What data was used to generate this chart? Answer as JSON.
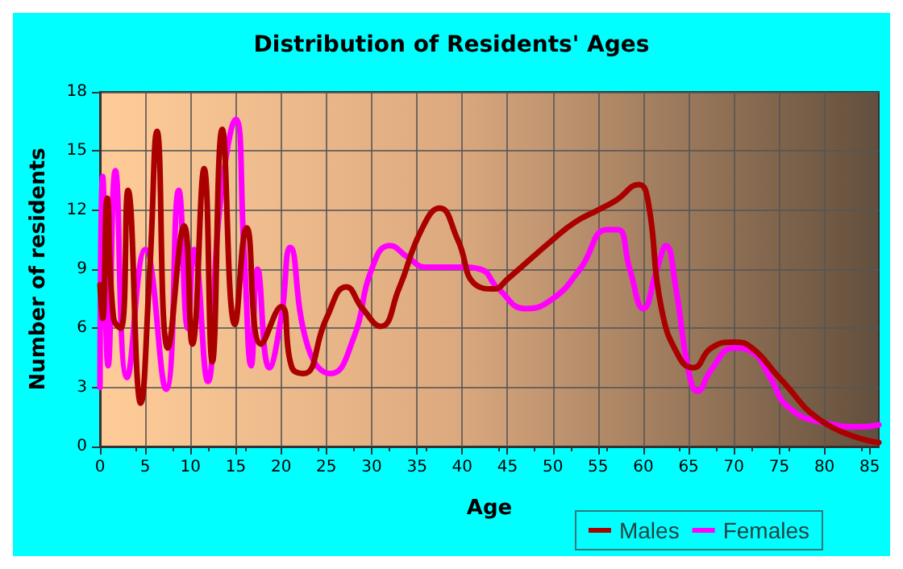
{
  "chart_data": {
    "type": "line",
    "title": "Distribution of Residents' Ages",
    "xlabel": "Age",
    "ylabel": "Number of residents",
    "xlim": [
      0,
      86
    ],
    "xticks": [
      0,
      5,
      10,
      15,
      20,
      25,
      30,
      35,
      40,
      45,
      50,
      55,
      60,
      65,
      70,
      75,
      80,
      85
    ],
    "ylim": [
      0,
      18
    ],
    "yticks": [
      0,
      3,
      6,
      9,
      12,
      15,
      18
    ],
    "grid": true,
    "legend": "bottom right",
    "marker": "none",
    "line_style": "solid",
    "series": [
      {
        "name": "Males",
        "color": "#aa0000",
        "x": [
          0,
          0.3,
          0.8,
          1.5,
          2.3,
          3.1,
          4.5,
          5.5,
          6.3,
          7.5,
          9.3,
          10.2,
          11.5,
          12.4,
          13.5,
          14.9,
          16.2,
          17.8,
          20,
          21.2,
          22.5,
          25,
          27.2,
          29,
          31,
          33,
          35.5,
          37.5,
          39.5,
          41.5,
          43.5,
          45,
          50,
          52.5,
          55,
          57,
          59.5,
          60.5,
          62,
          64,
          65.5,
          67.5,
          70,
          72,
          75,
          80,
          86
        ],
        "values": [
          8.2,
          6.5,
          12.6,
          6.5,
          6,
          13,
          2.2,
          9,
          16,
          5,
          11.2,
          5.2,
          14.1,
          4.3,
          16.1,
          6.2,
          11.1,
          5.2,
          7.1,
          4,
          3.7,
          6.5,
          8.1,
          7,
          6.1,
          8,
          11,
          12.1,
          10.5,
          8.2,
          8,
          8.5,
          10.5,
          11.4,
          12,
          12.5,
          13.3,
          12.5,
          7,
          4.5,
          4,
          5,
          5.3,
          5,
          3.5,
          1.2,
          0.2
        ]
      },
      {
        "name": "Females",
        "color": "#ff00ff",
        "x": [
          0,
          0.3,
          0.9,
          1.7,
          3,
          5,
          7.3,
          8.7,
          9.7,
          10.4,
          11.9,
          13.2,
          15,
          15.9,
          16.7,
          17.4,
          18.7,
          20,
          21,
          23,
          25.5,
          28,
          30,
          32,
          34,
          36,
          40,
          42,
          44,
          47,
          50,
          53,
          56,
          57.2,
          58.5,
          60,
          61.5,
          62.5,
          63.6,
          65,
          66,
          67.5,
          70,
          72,
          74,
          76,
          80,
          84,
          86
        ],
        "values": [
          3,
          13.7,
          4.1,
          14,
          3.5,
          10,
          2.9,
          13,
          6,
          10,
          3.3,
          12,
          16.6,
          10,
          4.1,
          9,
          4,
          6.5,
          10.1,
          5,
          3.7,
          5.5,
          9,
          10.2,
          9.6,
          9.1,
          9.1,
          9,
          8,
          7,
          7.5,
          9,
          11,
          11,
          9,
          7,
          9,
          10.2,
          8,
          3.8,
          2.8,
          3.9,
          5,
          4.8,
          3.5,
          2,
          1.2,
          1,
          1.1
        ]
      }
    ]
  }
}
